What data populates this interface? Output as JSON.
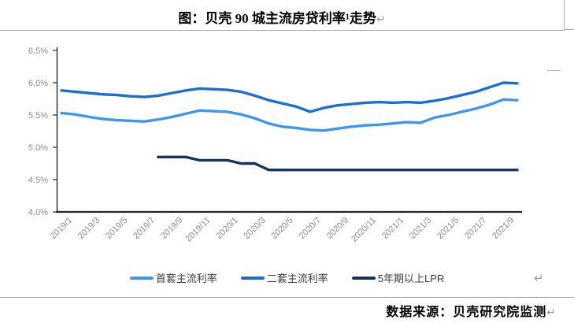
{
  "doc": {
    "title": "图：贝壳 90 城主流房贷利率¹走势",
    "source_note": "数据来源：贝壳研究院监测",
    "paragraph_mark": "↵"
  },
  "chart_data": {
    "type": "line",
    "title": "贝壳90城主流房贷利率走势",
    "xlabel": "",
    "ylabel": "",
    "ylim": [
      4.0,
      6.5
    ],
    "grid": false,
    "legend_position": "bottom",
    "axis_color": "#262626",
    "tick_label_color": "#8c8c8c",
    "y_ticks": [
      "6.5%",
      "6.0%",
      "5.5%",
      "5.0%",
      "4.5%",
      "4.0%"
    ],
    "x": [
      "2019/1",
      "2019/2",
      "2019/3",
      "2019/4",
      "2019/5",
      "2019/6",
      "2019/7",
      "2019/8",
      "2019/9",
      "2019/10",
      "2019/11",
      "2019/12",
      "2020/1",
      "2020/2",
      "2020/3",
      "2020/4",
      "2020/5",
      "2020/6",
      "2020/7",
      "2020/8",
      "2020/9",
      "2020/10",
      "2020/11",
      "2020/12",
      "2021/1",
      "2021/2",
      "2021/3",
      "2021/4",
      "2021/5",
      "2021/6",
      "2021/7",
      "2021/8",
      "2021/9",
      "2021/10"
    ],
    "x_tick_labels": [
      "2019/1",
      "2019/3",
      "2019/5",
      "2019/7",
      "2019/9",
      "2019/11",
      "2020/1",
      "2020/3",
      "2020/5",
      "2020/7",
      "2020/9",
      "2020/11",
      "2021/1",
      "2021/3",
      "2021/5",
      "2021/7",
      "2021/9"
    ],
    "series": [
      {
        "id": "line-first-home-rate",
        "name": "首套主流利率",
        "color": "#3e96f0",
        "values": [
          5.53,
          5.51,
          5.47,
          5.44,
          5.42,
          5.41,
          5.4,
          5.43,
          5.47,
          5.52,
          5.57,
          5.56,
          5.55,
          5.51,
          5.45,
          5.37,
          5.32,
          5.3,
          5.27,
          5.26,
          5.29,
          5.32,
          5.34,
          5.35,
          5.37,
          5.39,
          5.38,
          5.46,
          5.5,
          5.55,
          5.6,
          5.66,
          5.74,
          5.73
        ]
      },
      {
        "id": "line-second-home-rate",
        "name": "二套主流利率",
        "color": "#1b6fd0",
        "values": [
          5.88,
          5.86,
          5.84,
          5.82,
          5.81,
          5.79,
          5.78,
          5.8,
          5.84,
          5.88,
          5.91,
          5.9,
          5.89,
          5.86,
          5.8,
          5.73,
          5.68,
          5.63,
          5.55,
          5.61,
          5.65,
          5.67,
          5.69,
          5.7,
          5.69,
          5.7,
          5.69,
          5.72,
          5.76,
          5.81,
          5.86,
          5.93,
          6.0,
          5.99
        ]
      },
      {
        "id": "line-lpr-5y",
        "name": "5年期以上LPR",
        "color": "#17325f",
        "values": [
          null,
          null,
          null,
          null,
          null,
          null,
          null,
          4.85,
          4.85,
          4.85,
          4.8,
          4.8,
          4.8,
          4.75,
          4.75,
          4.65,
          4.65,
          4.65,
          4.65,
          4.65,
          4.65,
          4.65,
          4.65,
          4.65,
          4.65,
          4.65,
          4.65,
          4.65,
          4.65,
          4.65,
          4.65,
          4.65,
          4.65,
          4.65
        ]
      }
    ]
  }
}
